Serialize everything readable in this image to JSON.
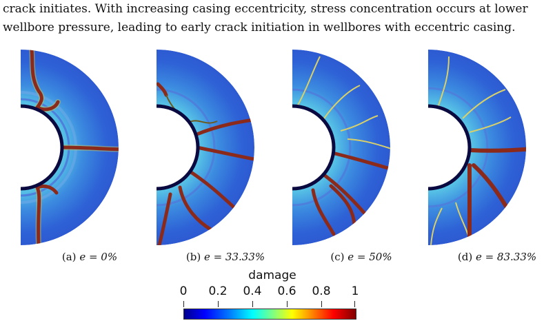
{
  "text": {
    "line1": "crack initiates. With increasing casing eccentricity, stress concentration occurs at lower",
    "line2": "wellbore pressure, leading to early crack initiation in wellbores with eccentric casing."
  },
  "figures": [
    {
      "label": "(a)",
      "eq": "e = 0%"
    },
    {
      "label": "(b)",
      "eq": "e = 33.33%"
    },
    {
      "label": "(c)",
      "eq": "e = 50%"
    },
    {
      "label": "(d)",
      "eq": "e = 83.33%"
    }
  ],
  "colorbar": {
    "title": "damage",
    "ticks": [
      "0",
      "0.2",
      "0.4",
      "0.6",
      "0.8",
      "1"
    ],
    "colormap": [
      "#00008f",
      "#0000ff",
      "#0080ff",
      "#00ffff",
      "#80ff80",
      "#ffff00",
      "#ff8000",
      "#ff0000",
      "#800000"
    ]
  }
}
